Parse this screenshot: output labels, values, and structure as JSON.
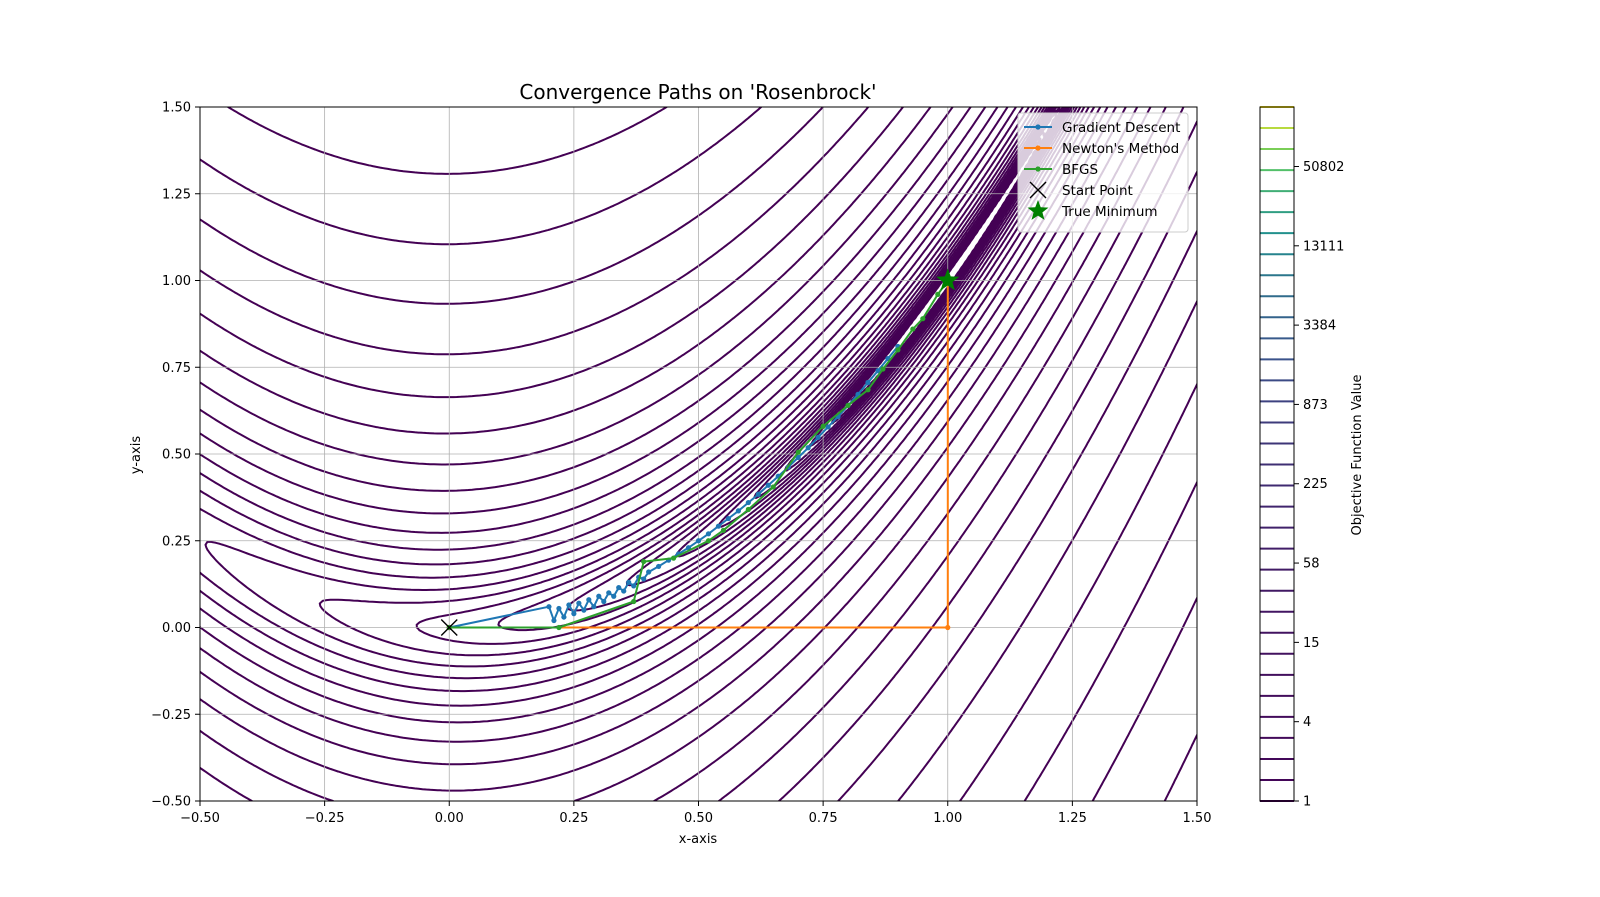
{
  "chart_data": {
    "type": "line",
    "title": "Convergence Paths on 'Rosenbrock'",
    "xlabel": "x-axis",
    "ylabel": "y-axis",
    "xlim": [
      -0.5,
      1.5
    ],
    "ylim": [
      -0.5,
      1.5
    ],
    "xticks": [
      "−0.50",
      "−0.25",
      "0.00",
      "0.25",
      "0.50",
      "0.75",
      "1.00",
      "1.25",
      "1.50"
    ],
    "yticks": [
      "−0.50",
      "−0.25",
      "0.00",
      "0.25",
      "0.50",
      "0.75",
      "1.00",
      "1.25",
      "1.50"
    ],
    "grid": true,
    "legend_position": "top-right",
    "background": "contour",
    "contour_function": "rosenbrock",
    "contour_levels_count": 34,
    "contour_color": "#440154",
    "series": [
      {
        "name": "Gradient Descent",
        "color": "#1f77b4",
        "marker": "circle",
        "x": [
          0.0,
          0.2,
          0.21,
          0.22,
          0.23,
          0.24,
          0.25,
          0.26,
          0.27,
          0.28,
          0.29,
          0.3,
          0.31,
          0.32,
          0.33,
          0.34,
          0.35,
          0.36,
          0.37,
          0.38,
          0.39,
          0.4,
          0.42,
          0.44,
          0.46,
          0.48,
          0.5,
          0.52,
          0.54,
          0.56,
          0.58,
          0.6,
          0.62,
          0.64,
          0.66,
          0.68,
          0.7,
          0.72,
          0.74,
          0.76,
          0.78,
          0.8,
          0.82,
          0.84,
          0.86,
          0.88,
          0.9
        ],
        "y": [
          0.0,
          0.06,
          0.02,
          0.055,
          0.03,
          0.065,
          0.04,
          0.07,
          0.05,
          0.08,
          0.06,
          0.09,
          0.075,
          0.1,
          0.09,
          0.115,
          0.105,
          0.13,
          0.12,
          0.145,
          0.14,
          0.16,
          0.176,
          0.194,
          0.212,
          0.23,
          0.25,
          0.27,
          0.292,
          0.314,
          0.336,
          0.36,
          0.384,
          0.41,
          0.436,
          0.462,
          0.49,
          0.518,
          0.548,
          0.578,
          0.608,
          0.64,
          0.672,
          0.706,
          0.74,
          0.775,
          0.81
        ]
      },
      {
        "name": "Newton's Method",
        "color": "#ff7f0e",
        "marker": "circle",
        "x": [
          0.0,
          1.0,
          1.0
        ],
        "y": [
          0.0,
          0.0,
          1.0
        ]
      },
      {
        "name": "BFGS",
        "color": "#2ca02c",
        "marker": "circle",
        "x": [
          0.0,
          0.22,
          0.37,
          0.39,
          0.45,
          0.52,
          0.55,
          0.6,
          0.65,
          0.7,
          0.75,
          0.8,
          0.84,
          0.87,
          0.9,
          0.93,
          0.95,
          0.98,
          1.0
        ],
        "y": [
          0.0,
          0.0,
          0.075,
          0.19,
          0.2,
          0.25,
          0.28,
          0.34,
          0.405,
          0.505,
          0.58,
          0.64,
          0.685,
          0.745,
          0.8,
          0.86,
          0.89,
          0.96,
          1.0
        ]
      },
      {
        "name": "Start Point",
        "color": "#000000",
        "marker": "x",
        "x": [
          0.0
        ],
        "y": [
          0.0
        ]
      },
      {
        "name": "True Minimum",
        "color": "#008000",
        "marker": "star",
        "x": [
          1.0
        ],
        "y": [
          1.0
        ]
      }
    ],
    "colorbar": {
      "label": "Objective Function Value",
      "tick_labels": [
        "1",
        "4",
        "15",
        "58",
        "225",
        "873",
        "3384",
        "13111",
        "50802"
      ],
      "colors": [
        "#440154",
        "#3b528b",
        "#21908d",
        "#5dc962",
        "#fde725"
      ]
    }
  }
}
